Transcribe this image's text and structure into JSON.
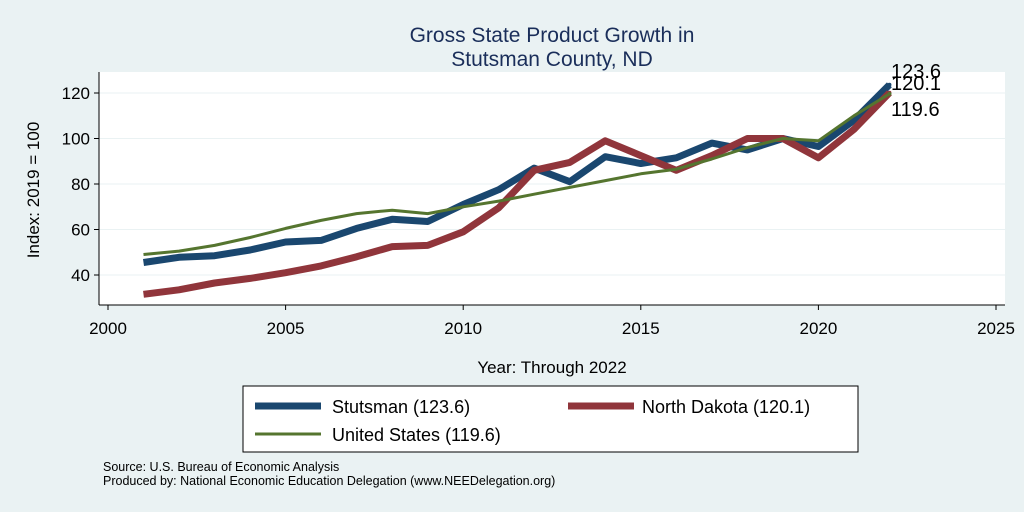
{
  "chart_data": {
    "type": "line",
    "title": "Gross State Product Growth in",
    "subtitle": "Stutsman County, ND",
    "xlabel": "Year: Through 2022",
    "ylabel": "Index: 2019 = 100",
    "xlim": [
      2000,
      2025
    ],
    "ylim": [
      30,
      128
    ],
    "xticks": [
      2000,
      2005,
      2010,
      2015,
      2020,
      2025
    ],
    "yticks": [
      40,
      60,
      80,
      100,
      120
    ],
    "grid": true,
    "legend_position": "bottom",
    "x": [
      2001,
      2002,
      2003,
      2004,
      2005,
      2006,
      2007,
      2008,
      2009,
      2010,
      2011,
      2012,
      2013,
      2014,
      2015,
      2016,
      2017,
      2018,
      2019,
      2020,
      2021,
      2022
    ],
    "series": [
      {
        "name": "Stutsman",
        "legend_label": "Stutsman  (123.6)",
        "end_label": "123.6",
        "color": "#1a476f",
        "values": [
          45.5,
          47.8,
          48.5,
          51.0,
          54.5,
          55.2,
          60.5,
          64.5,
          63.5,
          71.0,
          77.5,
          87.0,
          81.0,
          92.0,
          89.0,
          91.5,
          98.0,
          95.0,
          100.0,
          96.5,
          108.0,
          123.6
        ]
      },
      {
        "name": "North Dakota",
        "legend_label": "North Dakota (120.1)",
        "end_label": "120.1",
        "color": "#90353b",
        "values": [
          31.5,
          33.5,
          36.5,
          38.5,
          41.0,
          44.0,
          48.0,
          52.5,
          53.0,
          59.0,
          69.5,
          86.0,
          89.5,
          99.0,
          92.5,
          86.0,
          92.5,
          100.0,
          100.0,
          91.5,
          104.0,
          120.1
        ]
      },
      {
        "name": "United States",
        "legend_label": "United States (119.6)",
        "end_label": "119.6",
        "color": "#55752f",
        "values": [
          49.0,
          50.5,
          53.0,
          56.5,
          60.5,
          64.0,
          67.0,
          68.5,
          67.0,
          70.0,
          72.5,
          75.5,
          78.5,
          81.5,
          84.5,
          86.5,
          91.0,
          96.0,
          100.0,
          99.0,
          110.0,
          119.6
        ]
      }
    ]
  },
  "footnotes": {
    "source": "Source: U.S. Bureau of Economic Analysis",
    "produced_by": "Produced by: National Economic Education Delegation (www.NEEDelegation.org)"
  }
}
